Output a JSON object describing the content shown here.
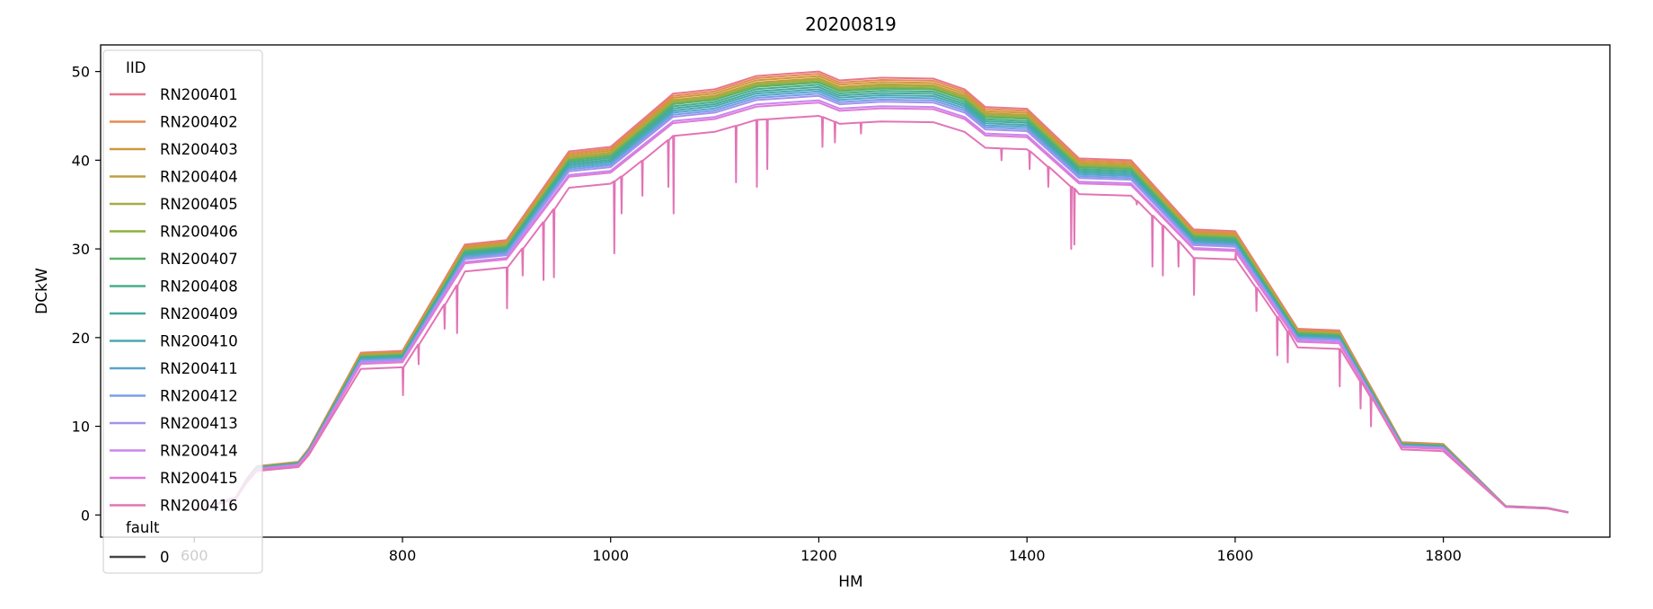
{
  "chart_data": {
    "type": "line",
    "title": "20200819",
    "xlabel": "HM",
    "ylabel": "DCkW",
    "xlim": [
      510,
      1960
    ],
    "ylim": [
      -2.5,
      53
    ],
    "xticks": [
      600,
      800,
      1000,
      1200,
      1400,
      1600,
      1800
    ],
    "yticks": [
      0,
      10,
      20,
      30,
      40,
      50
    ],
    "grid": false,
    "legend": {
      "placement": "upper-left",
      "hue_title": "IID",
      "style_title": "fault",
      "style_entries": [
        {
          "label": "0",
          "color": "#444444"
        }
      ]
    },
    "base_profile": {
      "x": [
        600,
        640,
        650,
        660,
        700,
        710,
        760,
        800,
        860,
        900,
        960,
        1000,
        1060,
        1100,
        1140,
        1200,
        1220,
        1260,
        1310,
        1340,
        1360,
        1400,
        1450,
        1500,
        1560,
        1600,
        1660,
        1700,
        1760,
        1800,
        1860,
        1900,
        1920
      ],
      "y": [
        0.5,
        2,
        4,
        5.5,
        6,
        7.5,
        18.3,
        18.5,
        30.5,
        31,
        41,
        41.5,
        47.5,
        48,
        49.5,
        50,
        49,
        49.3,
        49.2,
        48,
        46,
        45.8,
        40.2,
        40,
        32.2,
        32,
        21,
        20.8,
        8.2,
        8,
        1,
        0.8,
        0.3
      ]
    },
    "series": [
      {
        "name": "RN200401",
        "color": "#e8768a",
        "scale": 1.0,
        "dips": []
      },
      {
        "name": "RN200402",
        "color": "#e58a50",
        "scale": 0.995,
        "dips": []
      },
      {
        "name": "RN200403",
        "color": "#d0973a",
        "scale": 0.99,
        "dips": []
      },
      {
        "name": "RN200404",
        "color": "#bfa040",
        "scale": 0.985,
        "dips": []
      },
      {
        "name": "RN200405",
        "color": "#a8ab46",
        "scale": 0.982,
        "dips": []
      },
      {
        "name": "RN200406",
        "color": "#8ab23e",
        "scale": 0.978,
        "dips": []
      },
      {
        "name": "RN200407",
        "color": "#5bb26c",
        "scale": 0.975,
        "dips": []
      },
      {
        "name": "RN200408",
        "color": "#48ad8c",
        "scale": 0.97,
        "dips": []
      },
      {
        "name": "RN200409",
        "color": "#45aa9c",
        "scale": 0.965,
        "dips": []
      },
      {
        "name": "RN200410",
        "color": "#4aa8ae",
        "scale": 0.96,
        "dips": []
      },
      {
        "name": "RN200411",
        "color": "#55a6d0",
        "scale": 0.955,
        "dips": []
      },
      {
        "name": "RN200412",
        "color": "#7a9ee8",
        "scale": 0.95,
        "dips": []
      },
      {
        "name": "RN200413",
        "color": "#a493ee",
        "scale": 0.945,
        "dips": []
      },
      {
        "name": "RN200414",
        "color": "#c887ee",
        "scale": 0.935,
        "dips": []
      },
      {
        "name": "RN200415",
        "color": "#e27ad8",
        "scale": 0.93,
        "dips": []
      },
      {
        "name": "RN200416",
        "color": "#e274b6",
        "scale": 0.9,
        "dips": [
          {
            "x": 800,
            "y": 13.5
          },
          {
            "x": 815,
            "y": 17
          },
          {
            "x": 840,
            "y": 21
          },
          {
            "x": 852,
            "y": 20.5
          },
          {
            "x": 900,
            "y": 23.3
          },
          {
            "x": 915,
            "y": 27
          },
          {
            "x": 935,
            "y": 26.5
          },
          {
            "x": 945,
            "y": 26.8
          },
          {
            "x": 1003,
            "y": 29.5
          },
          {
            "x": 1010,
            "y": 34
          },
          {
            "x": 1030,
            "y": 36
          },
          {
            "x": 1055,
            "y": 37
          },
          {
            "x": 1060,
            "y": 34
          },
          {
            "x": 1120,
            "y": 37.5
          },
          {
            "x": 1140,
            "y": 37
          },
          {
            "x": 1150,
            "y": 39
          },
          {
            "x": 1203,
            "y": 41.5
          },
          {
            "x": 1215,
            "y": 42
          },
          {
            "x": 1240,
            "y": 43
          },
          {
            "x": 1375,
            "y": 40
          },
          {
            "x": 1402,
            "y": 39
          },
          {
            "x": 1420,
            "y": 37
          },
          {
            "x": 1442,
            "y": 30
          },
          {
            "x": 1445,
            "y": 30.5
          },
          {
            "x": 1505,
            "y": 35
          },
          {
            "x": 1520,
            "y": 28
          },
          {
            "x": 1530,
            "y": 27
          },
          {
            "x": 1545,
            "y": 28
          },
          {
            "x": 1560,
            "y": 24.8
          },
          {
            "x": 1600,
            "y": 29.5
          },
          {
            "x": 1620,
            "y": 23
          },
          {
            "x": 1640,
            "y": 18
          },
          {
            "x": 1650,
            "y": 17.2
          },
          {
            "x": 1700,
            "y": 14.5
          },
          {
            "x": 1720,
            "y": 12
          },
          {
            "x": 1730,
            "y": 10
          }
        ]
      }
    ]
  }
}
